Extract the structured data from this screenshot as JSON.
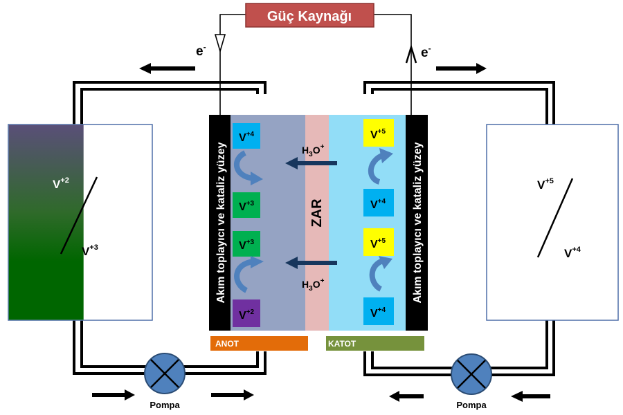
{
  "power_source": {
    "label": "Güç Kaynağı",
    "color": "#c0504d"
  },
  "electrons": {
    "left": "e",
    "right": "e",
    "charge": "-"
  },
  "current_collector": {
    "label": "Akım toplayıcı ve kataliz yüzey"
  },
  "membrane": {
    "label": "ZAR",
    "color": "#e6b9b8"
  },
  "proton": {
    "base": "H",
    "sub": "3",
    "mid": "O",
    "sup": "+"
  },
  "anode": {
    "label": "ANOT",
    "color": "#e36c09",
    "electrolyte_color": "#95a3c3",
    "chips": [
      {
        "base": "V",
        "sup": "+4",
        "color": "#00b0f0"
      },
      {
        "base": "V",
        "sup": "+3",
        "color": "#00b050"
      },
      {
        "base": "V",
        "sup": "+3",
        "color": "#00b050"
      },
      {
        "base": "V",
        "sup": "+2",
        "color": "#7030a0"
      }
    ]
  },
  "cathode": {
    "label": "KATOT",
    "color": "#76923c",
    "electrolyte_color": "#92ddf7",
    "chips": [
      {
        "base": "V",
        "sup": "+5",
        "color": "#ffff00"
      },
      {
        "base": "V",
        "sup": "+4",
        "color": "#00b0f0"
      },
      {
        "base": "V",
        "sup": "+5",
        "color": "#ffff00"
      },
      {
        "base": "V",
        "sup": "+4",
        "color": "#00b0f0"
      }
    ]
  },
  "left_tank": {
    "top": {
      "base": "V",
      "sup": "+2"
    },
    "bottom": {
      "base": "V",
      "sup": "+3"
    }
  },
  "right_tank": {
    "top": {
      "base": "V",
      "sup": "+5"
    },
    "bottom": {
      "base": "V",
      "sup": "+4"
    }
  },
  "pumps": {
    "left": "Pompa",
    "right": "Pompa"
  }
}
